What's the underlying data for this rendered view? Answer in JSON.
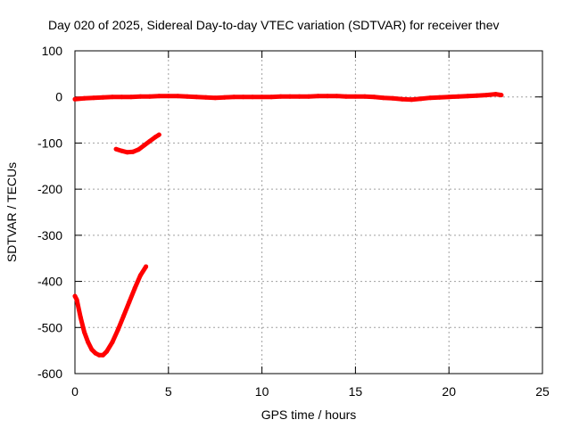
{
  "chart_data": {
    "type": "scatter",
    "title": "Day 020 of 2025, Sidereal Day-to-day VTEC variation (SDTVAR) for receiver thev",
    "xlabel": "GPS time / hours",
    "ylabel": "SDTVAR / TECUs",
    "xlim": [
      0,
      25
    ],
    "ylim": [
      -600,
      100
    ],
    "xticks": [
      0,
      5,
      10,
      15,
      20,
      25
    ],
    "yticks": [
      100,
      0,
      -100,
      -200,
      -300,
      -400,
      -500,
      -600
    ],
    "grid": true,
    "legend": "none",
    "color": "#ff0000",
    "series": [
      {
        "values": [
          [
            0.0,
            -5
          ],
          [
            0.5,
            -3
          ],
          [
            1.0,
            -2
          ],
          [
            1.5,
            -1
          ],
          [
            2.0,
            0
          ],
          [
            2.5,
            0
          ],
          [
            3.0,
            0
          ],
          [
            3.5,
            1
          ],
          [
            4.0,
            1
          ],
          [
            4.5,
            2
          ],
          [
            5.0,
            2
          ],
          [
            5.5,
            2
          ],
          [
            6.0,
            1
          ],
          [
            6.5,
            0
          ],
          [
            7.0,
            -1
          ],
          [
            7.5,
            -2
          ],
          [
            8.0,
            -1
          ],
          [
            8.5,
            0
          ],
          [
            9.0,
            0
          ],
          [
            9.5,
            0
          ],
          [
            10.0,
            0
          ],
          [
            10.5,
            0
          ],
          [
            11.0,
            1
          ],
          [
            11.5,
            1
          ],
          [
            12.0,
            1
          ],
          [
            12.5,
            1
          ],
          [
            13.0,
            2
          ],
          [
            13.5,
            2
          ],
          [
            14.0,
            2
          ],
          [
            14.5,
            1
          ],
          [
            15.0,
            1
          ],
          [
            15.5,
            1
          ],
          [
            16.0,
            0
          ],
          [
            16.5,
            -2
          ],
          [
            17.0,
            -3
          ],
          [
            17.5,
            -5
          ],
          [
            18.0,
            -6
          ],
          [
            18.5,
            -4
          ],
          [
            19.0,
            -2
          ],
          [
            19.5,
            -1
          ],
          [
            20.0,
            0
          ],
          [
            20.5,
            1
          ],
          [
            21.0,
            2
          ],
          [
            21.5,
            3
          ],
          [
            22.0,
            4
          ],
          [
            22.5,
            6
          ],
          [
            22.8,
            4
          ]
        ]
      },
      {
        "values": [
          [
            2.2,
            -113
          ],
          [
            2.5,
            -117
          ],
          [
            2.8,
            -120
          ],
          [
            3.1,
            -119
          ],
          [
            3.4,
            -114
          ],
          [
            3.7,
            -105
          ],
          [
            4.0,
            -96
          ],
          [
            4.3,
            -87
          ],
          [
            4.5,
            -82
          ]
        ]
      },
      {
        "values": [
          [
            0.0,
            -432
          ],
          [
            0.1,
            -440
          ],
          [
            0.3,
            -478
          ],
          [
            0.5,
            -510
          ],
          [
            0.7,
            -532
          ],
          [
            0.9,
            -548
          ],
          [
            1.1,
            -556
          ],
          [
            1.3,
            -560
          ],
          [
            1.5,
            -560
          ],
          [
            1.7,
            -552
          ],
          [
            2.0,
            -532
          ],
          [
            2.3,
            -505
          ],
          [
            2.6,
            -475
          ],
          [
            2.9,
            -445
          ],
          [
            3.2,
            -415
          ],
          [
            3.5,
            -387
          ],
          [
            3.8,
            -368
          ]
        ]
      }
    ]
  }
}
